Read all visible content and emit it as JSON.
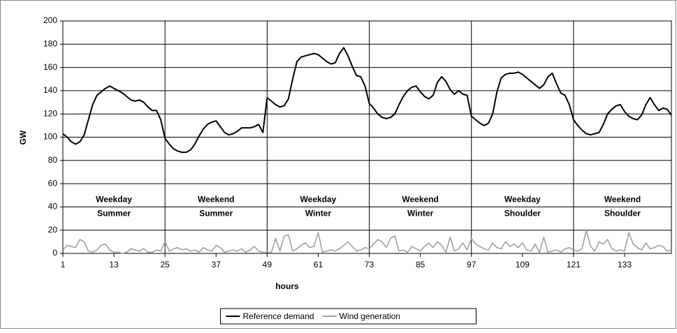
{
  "chart_data": {
    "type": "line",
    "x_label": "hours",
    "y_label": "GW",
    "x": [
      1,
      2,
      3,
      4,
      5,
      6,
      7,
      8,
      9,
      10,
      11,
      12,
      13,
      14,
      15,
      16,
      17,
      18,
      19,
      20,
      21,
      22,
      23,
      24,
      25,
      26,
      27,
      28,
      29,
      30,
      31,
      32,
      33,
      34,
      35,
      36,
      37,
      38,
      39,
      40,
      41,
      42,
      43,
      44,
      45,
      46,
      47,
      48,
      49,
      50,
      51,
      52,
      53,
      54,
      55,
      56,
      57,
      58,
      59,
      60,
      61,
      62,
      63,
      64,
      65,
      66,
      67,
      68,
      69,
      70,
      71,
      72,
      73,
      74,
      75,
      76,
      77,
      78,
      79,
      80,
      81,
      82,
      83,
      84,
      85,
      86,
      87,
      88,
      89,
      90,
      91,
      92,
      93,
      94,
      95,
      96,
      97,
      98,
      99,
      100,
      101,
      102,
      103,
      104,
      105,
      106,
      107,
      108,
      109,
      110,
      111,
      112,
      113,
      114,
      115,
      116,
      117,
      118,
      119,
      120,
      121,
      122,
      123,
      124,
      125,
      126,
      127,
      128,
      129,
      130,
      131,
      132,
      133,
      134,
      135,
      136,
      137,
      138,
      139,
      140,
      141,
      142,
      143,
      144
    ],
    "series": [
      {
        "name": "Reference demand",
        "color": "#000000",
        "values": [
          103,
          100,
          96,
          94,
          96,
          102,
          115,
          128,
          136,
          139,
          142,
          144,
          142,
          140,
          138,
          135,
          132,
          131,
          132,
          130,
          126,
          123,
          123,
          115,
          99,
          94,
          90,
          88,
          87,
          87,
          89,
          94,
          101,
          107,
          111,
          113,
          114,
          109,
          104,
          102,
          103,
          105,
          108,
          108,
          108,
          109,
          111,
          104,
          134,
          131,
          128,
          126,
          127,
          133,
          150,
          165,
          169,
          170,
          171,
          172,
          171,
          168,
          165,
          163,
          164,
          172,
          177,
          170,
          161,
          153,
          152,
          144,
          129,
          125,
          120,
          117,
          116,
          117,
          120,
          128,
          135,
          140,
          143,
          144,
          139,
          135,
          133,
          136,
          147,
          152,
          148,
          141,
          137,
          140,
          137,
          136,
          118,
          115,
          112,
          110,
          112,
          120,
          139,
          151,
          154,
          155,
          155,
          156,
          154,
          151,
          148,
          145,
          142,
          145,
          152,
          155,
          146,
          138,
          136,
          128,
          115,
          110,
          106,
          103,
          102,
          103,
          104,
          111,
          120,
          124,
          127,
          128,
          122,
          118,
          116,
          115,
          119,
          128,
          134,
          128,
          123,
          125,
          124,
          119
        ]
      },
      {
        "name": "Wind generation",
        "color": "#a0a0a0",
        "values": [
          3,
          7,
          6,
          5,
          12,
          10,
          2,
          1,
          3,
          7,
          8,
          3,
          1,
          1,
          0,
          1,
          4,
          3,
          2,
          4,
          1,
          1,
          3,
          2,
          10,
          2,
          4,
          5,
          3,
          4,
          2,
          3,
          1,
          5,
          3,
          2,
          7,
          5,
          1,
          2,
          3,
          2,
          4,
          1,
          3,
          6,
          2,
          1,
          1,
          1,
          13,
          2,
          15,
          16,
          2,
          4,
          7,
          9,
          5,
          6,
          18,
          1,
          2,
          3,
          2,
          4,
          7,
          10,
          6,
          2,
          3,
          5,
          4,
          8,
          12,
          10,
          5,
          13,
          15,
          2,
          3,
          1,
          6,
          4,
          2,
          6,
          9,
          5,
          10,
          7,
          1,
          14,
          2,
          4,
          9,
          3,
          13,
          8,
          6,
          4,
          3,
          9,
          5,
          4,
          10,
          6,
          8,
          5,
          9,
          3,
          2,
          8,
          1,
          14,
          1,
          2,
          3,
          1,
          4,
          5,
          3,
          2,
          4,
          20,
          6,
          2,
          10,
          8,
          12,
          4,
          2,
          3,
          2,
          18,
          8,
          5,
          3,
          9,
          4,
          5,
          7,
          6,
          2,
          3
        ]
      }
    ],
    "xlim": [
      1,
      144
    ],
    "xticks": [
      1,
      13,
      25,
      37,
      49,
      61,
      73,
      85,
      97,
      109,
      121,
      133
    ],
    "ylim": [
      0,
      200
    ],
    "yticks": [
      0,
      20,
      40,
      60,
      80,
      100,
      120,
      140,
      160,
      180,
      200
    ],
    "grid": true,
    "legend": "bottom",
    "separators": [
      25,
      49,
      73,
      97,
      121
    ],
    "annotations": [
      [
        "Weekday",
        "Summer"
      ],
      [
        "Weekend",
        "Summer"
      ],
      [
        "Weekday",
        "Winter"
      ],
      [
        "Weekend",
        "Winter"
      ],
      [
        "Weekday",
        "Shoulder"
      ],
      [
        "Weekend",
        "Shoulder"
      ]
    ]
  }
}
